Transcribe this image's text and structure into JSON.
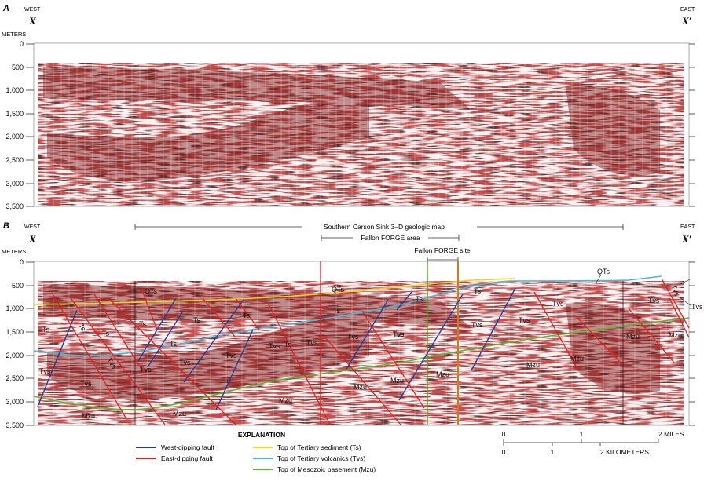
{
  "panel_a": {
    "letter": "A",
    "west": "WEST",
    "east": "EAST",
    "point_left": "X",
    "point_right": "X′",
    "unit": "METERS",
    "yticks": [
      "0",
      "500",
      "1,000",
      "1,500",
      "2,000",
      "2,500",
      "3,000",
      "3,500"
    ]
  },
  "panel_b": {
    "letter": "B",
    "west": "WEST",
    "east": "EAST",
    "point_left": "X",
    "point_right": "X′",
    "unit": "METERS",
    "yticks": [
      "0",
      "500",
      "1,000",
      "1,500",
      "2,000",
      "2,500",
      "3,000",
      "3,500"
    ],
    "annotations": {
      "geologic_map": "Southern Carson Sink 3–D geologic map",
      "forge_area": "Fallon FORGE area",
      "forge_site": "Fallon FORGE site"
    },
    "unit_labels": {
      "qts_main": "QTs",
      "qts_right": "QTs",
      "qts_far": "QTs",
      "ts_1": "Ts",
      "ts_2": "Ts",
      "ts_3": "Ts",
      "ts_4": "Ts",
      "ts_5": "Ts",
      "ts_6": "Ts",
      "ts_7": "Ts",
      "ts_8": "Ts",
      "ts_9": "Ts",
      "ts_10": "Ts",
      "ts_11": "Ts",
      "tvs_1": "Tvs",
      "tvs_2": "Tvs",
      "tvs_3": "Tvs",
      "tvs_4": "Tvs",
      "tvs_5": "Tvs",
      "tvs_6": "Tvs",
      "tvs_7": "Tvs",
      "tvs_8": "Tvs",
      "tvs_9": "Tvs",
      "tvs_10": "Tvs",
      "tvs_11": "Tvs",
      "tvs_12": "Tvs",
      "tvs_13": "Tvs",
      "tvs_14": "Tvs",
      "tvs_15": "Tvs",
      "tvs_16": "Tvs",
      "mzu_1": "Mzu",
      "mzu_2": "Mzu",
      "mzu_3": "Mzu",
      "mzu_4": "Mzu",
      "mzu_5": "Mzu",
      "mzu_6": "Mzu",
      "mzu_7": "Mzu",
      "mzu_8": "Mzu",
      "mzu_9": "Mzu",
      "mzu_10": "Mzu"
    }
  },
  "legend": {
    "title": "EXPLANATION",
    "items": [
      {
        "label": "West-dipping fault",
        "color": "#1f3d99"
      },
      {
        "label": "East-dipping fault",
        "color": "#e02020"
      },
      {
        "label": "Top of Tertiary sediment (Ts)",
        "color": "#f2d21a"
      },
      {
        "label": "Top of Tertiary volcanics (Tvs)",
        "color": "#4bb6d6"
      },
      {
        "label": "Top of Mesozoic basement (Mzu)",
        "color": "#5cb82e"
      }
    ]
  },
  "scale": {
    "miles": [
      "0",
      "1",
      "2 MILES"
    ],
    "km": [
      "0",
      "1",
      "2 KILOMETERS"
    ]
  },
  "colors": {
    "seismic_red": "#8b1a1a",
    "seismic_dark": "#2a0e0e",
    "forge_green": "#4f9e2a",
    "forge_orange": "#d17a18"
  }
}
